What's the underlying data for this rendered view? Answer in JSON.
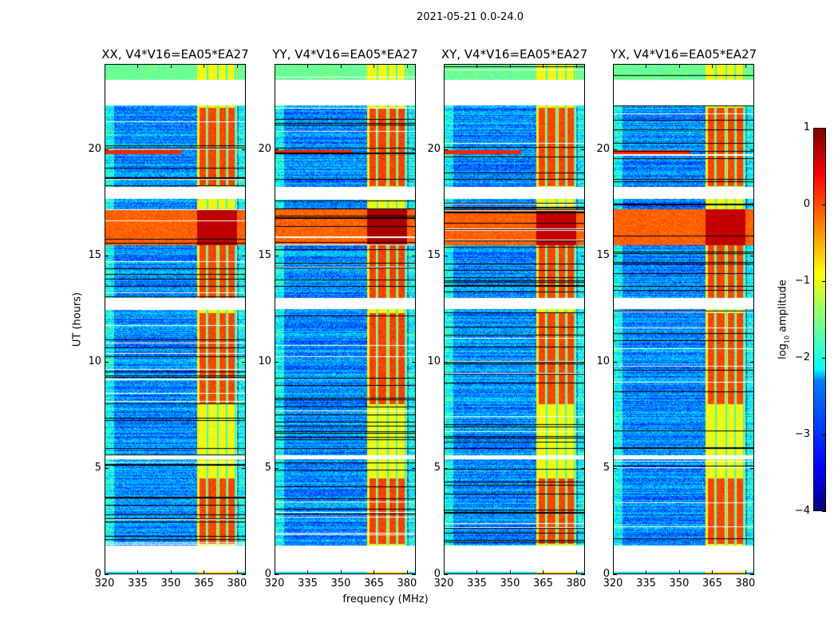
{
  "chart_data": {
    "type": "heatmap",
    "title": "2021-05-21 0.0-24.0",
    "xlabel": "frequency (MHz)",
    "ylabel": "UT (hours)",
    "xlim": [
      320,
      384
    ],
    "ylim": [
      0,
      24
    ],
    "xticks": [
      "320",
      "335",
      "350",
      "365",
      "380"
    ],
    "xtick_values": [
      320,
      335,
      350,
      365,
      380
    ],
    "yticks": [
      "0",
      "5",
      "10",
      "15",
      "20"
    ],
    "ytick_values": [
      0,
      5,
      10,
      15,
      20
    ],
    "panels": [
      {
        "title": "XX, V4*V16=EA05*EA27",
        "strength": 1.0
      },
      {
        "title": "YY, V4*V16=EA05*EA27",
        "strength": 1.15
      },
      {
        "title": "XY, V4*V16=EA05*EA27",
        "strength": 0.95
      },
      {
        "title": "YX, V4*V16=EA05*EA27",
        "strength": 0.95
      }
    ],
    "flagged_time_gaps_hours": [
      [
        0.1,
        1.35
      ],
      [
        5.4,
        5.6
      ],
      [
        12.5,
        13.0
      ],
      [
        17.7,
        18.25
      ],
      [
        22.1,
        23.3
      ]
    ],
    "rfi_band_mhz": [
      362,
      380
    ],
    "strong_rfi_hours": [
      15.5,
      17.2
    ],
    "colorbar": {
      "label_prefix": "log",
      "label_sub": "10",
      "label_suffix": " amplitude",
      "range": [
        -4,
        1
      ],
      "ticks": [
        "1",
        "0",
        "−1",
        "−2",
        "−3",
        "−4"
      ],
      "tick_values": [
        1,
        0,
        -1,
        -2,
        -3,
        -4
      ],
      "colormap": "jet"
    }
  }
}
